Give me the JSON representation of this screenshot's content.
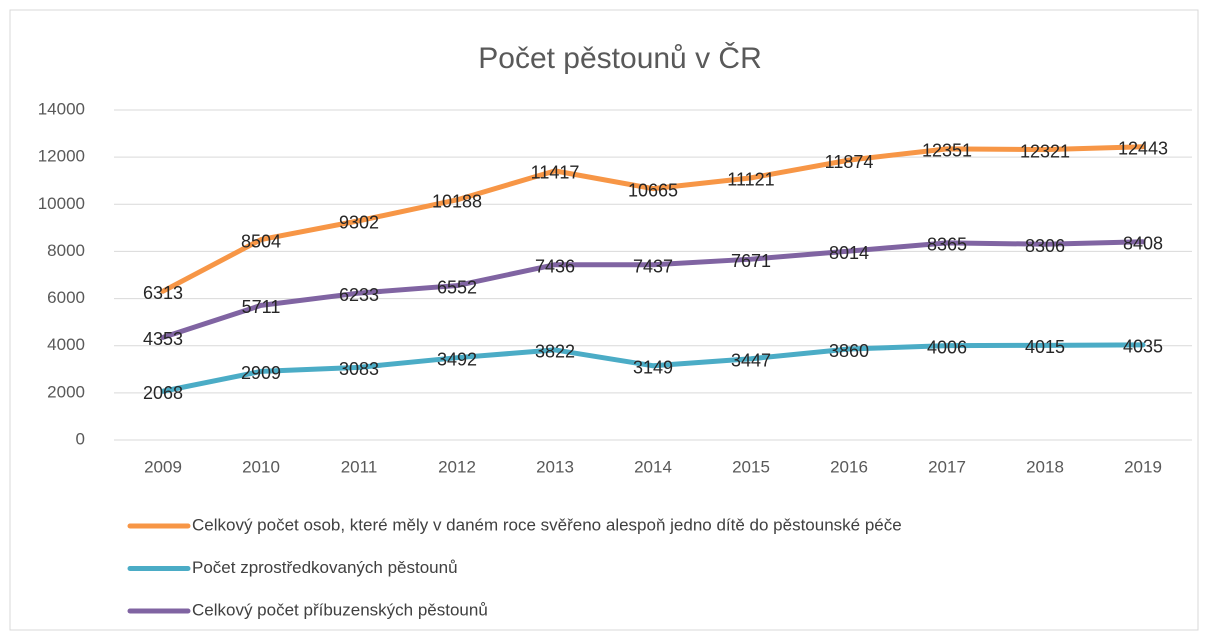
{
  "chart_data": {
    "type": "line",
    "title": "Počet pěstounů v ČR",
    "categories": [
      "2009",
      "2010",
      "2011",
      "2012",
      "2013",
      "2014",
      "2015",
      "2016",
      "2017",
      "2018",
      "2019"
    ],
    "series": [
      {
        "name": "Celkový počet osob, které měly v daném roce svěřeno alespoň jedno dítě do pěstounské péče",
        "color": "#f79646",
        "values": [
          6313,
          8504,
          9302,
          10188,
          11417,
          10665,
          11121,
          11874,
          12351,
          12321,
          12443
        ]
      },
      {
        "name": "Počet zprostředkovaných pěstounů",
        "color": "#4bacc6",
        "values": [
          2068,
          2909,
          3083,
          3492,
          3822,
          3149,
          3447,
          3860,
          4006,
          4015,
          4035
        ]
      },
      {
        "name": "Celkový počet příbuzenských pěstounů",
        "color": "#8064a2",
        "values": [
          4353,
          5711,
          6233,
          6552,
          7436,
          7437,
          7671,
          8014,
          8365,
          8306,
          8408
        ]
      }
    ],
    "ylim": [
      0,
      14000
    ],
    "yticks": [
      0,
      2000,
      4000,
      6000,
      8000,
      10000,
      12000,
      14000
    ],
    "grid": true
  }
}
